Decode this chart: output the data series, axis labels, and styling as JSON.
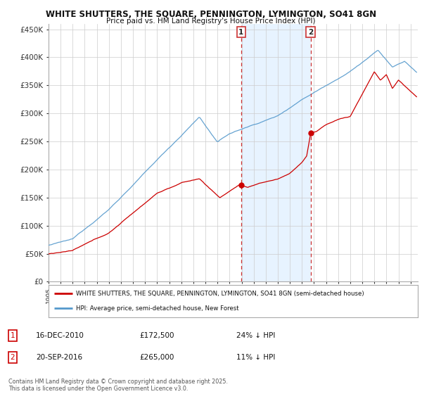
{
  "title1": "WHITE SHUTTERS, THE SQUARE, PENNINGTON, LYMINGTON, SO41 8GN",
  "title2": "Price paid vs. HM Land Registry's House Price Index (HPI)",
  "ylabel_ticks": [
    "£0",
    "£50K",
    "£100K",
    "£150K",
    "£200K",
    "£250K",
    "£300K",
    "£350K",
    "£400K",
    "£450K"
  ],
  "ytick_values": [
    0,
    50000,
    100000,
    150000,
    200000,
    250000,
    300000,
    350000,
    400000,
    450000
  ],
  "ylim": [
    0,
    460000
  ],
  "x_start_year": 1995,
  "x_end_year": 2025,
  "marker1_year": 2010.96,
  "marker1_price": 172500,
  "marker1_label": "1",
  "marker1_date": "16-DEC-2010",
  "marker1_pct": "24% ↓ HPI",
  "marker2_year": 2016.72,
  "marker2_price": 265000,
  "marker2_label": "2",
  "marker2_date": "20-SEP-2016",
  "marker2_pct": "11% ↓ HPI",
  "line1_color": "#cc0000",
  "line2_color": "#5599cc",
  "shade_color": "#ddeeff",
  "legend_line1": "WHITE SHUTTERS, THE SQUARE, PENNINGTON, LYMINGTON, SO41 8GN (semi-detached house)",
  "legend_line2": "HPI: Average price, semi-detached house, New Forest",
  "footnote": "Contains HM Land Registry data © Crown copyright and database right 2025.\nThis data is licensed under the Open Government Licence v3.0.",
  "background_color": "#ffffff",
  "grid_color": "#cccccc"
}
